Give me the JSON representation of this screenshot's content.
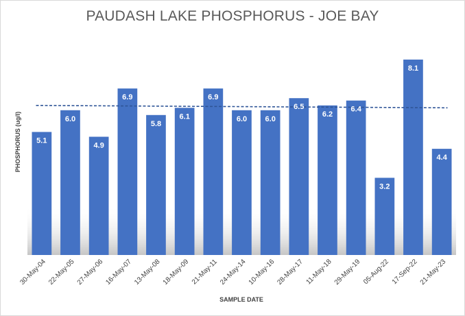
{
  "chart_data": {
    "type": "bar",
    "title": "PAUDASH LAKE PHOSPHORUS - JOE BAY",
    "xlabel": "SAMPLE DATE",
    "ylabel": "PHOSPHORUS (ug/l)",
    "categories": [
      "30-May-04",
      "22-May-05",
      "27-May-06",
      "16-May-07",
      "13-May-08",
      "18-May-09",
      "21-May-11",
      "24-May-14",
      "10-May-16",
      "28-May-17",
      "11-May-18",
      "29-May-19",
      "05-Aug-22",
      "17-Sep-22",
      "21-May-23"
    ],
    "series": [
      {
        "values": [
          5.1,
          6.0,
          4.9,
          6.9,
          5.8,
          6.1,
          6.9,
          6.0,
          6.0,
          6.5,
          6.2,
          6.4,
          3.2,
          8.1,
          4.4
        ]
      }
    ],
    "value_labels": [
      "5.1",
      "6.0",
      "4.9",
      "6.9",
      "5.8",
      "6.1",
      "6.9",
      "6.0",
      "6.0",
      "6.5",
      "6.2",
      "6.4",
      "3.2",
      "8.1",
      "4.4"
    ],
    "trendline": {
      "type": "linear",
      "style": "dashed",
      "start": 6.2,
      "end": 6.1
    },
    "ylim": [
      0,
      9
    ],
    "grid": false,
    "legend": "none",
    "colors": {
      "bar": "#4472c4",
      "trendline": "#2f5597"
    }
  }
}
